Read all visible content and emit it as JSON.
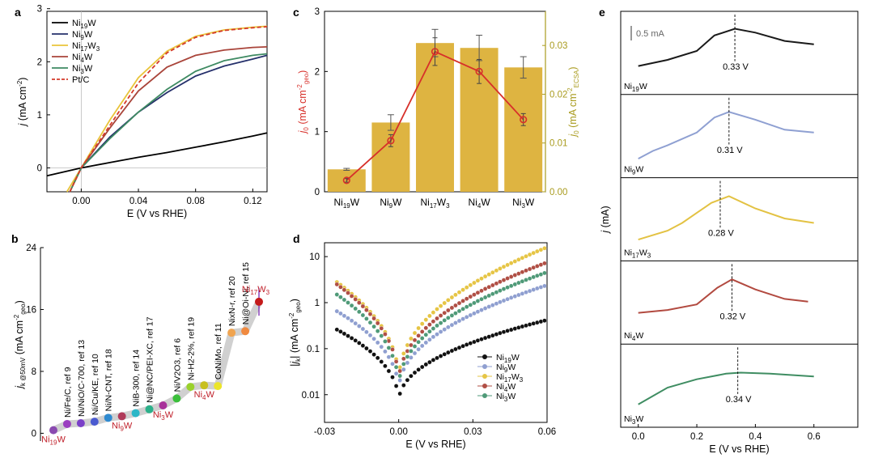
{
  "chart_data": [
    {
      "panel": "a",
      "type": "line",
      "xlabel": "E (V vs RHE)",
      "ylabel": "j (mA cm-2)",
      "xlim": [
        -0.024,
        0.13
      ],
      "ylim": [
        -0.45,
        2.95
      ],
      "xticks": [
        "0.00",
        "0.04",
        "0.08",
        "0.12"
      ],
      "xtick_values": [
        0,
        0.04,
        0.08,
        0.12
      ],
      "yticks": [
        "0",
        "1",
        "2",
        "3"
      ],
      "ytick_values": [
        0,
        1,
        2,
        3
      ],
      "grid": false,
      "legend_position": "top-left",
      "series": [
        {
          "name": "Ni19W",
          "color": "#000000",
          "dash": false,
          "x": [
            -0.024,
            0,
            0.02,
            0.04,
            0.06,
            0.08,
            0.1,
            0.12,
            0.13
          ],
          "y": [
            -0.15,
            0.0,
            0.1,
            0.2,
            0.29,
            0.39,
            0.49,
            0.6,
            0.66
          ]
        },
        {
          "name": "Ni9W",
          "color": "#25306b",
          "dash": false,
          "x": [
            -0.008,
            0,
            0.02,
            0.04,
            0.06,
            0.08,
            0.1,
            0.12,
            0.13
          ],
          "y": [
            -0.45,
            0.0,
            0.58,
            1.05,
            1.42,
            1.73,
            1.92,
            2.05,
            2.12
          ]
        },
        {
          "name": "Ni17W3",
          "color": "#e9c43a",
          "dash": false,
          "x": [
            -0.01,
            0,
            0.02,
            0.04,
            0.06,
            0.08,
            0.1,
            0.12,
            0.13
          ],
          "y": [
            -0.45,
            0.0,
            0.9,
            1.7,
            2.2,
            2.48,
            2.6,
            2.65,
            2.67
          ]
        },
        {
          "name": "Ni4W",
          "color": "#a9443a",
          "dash": false,
          "x": [
            -0.008,
            0,
            0.02,
            0.04,
            0.06,
            0.08,
            0.1,
            0.12,
            0.13
          ],
          "y": [
            -0.45,
            0.0,
            0.75,
            1.45,
            1.9,
            2.12,
            2.22,
            2.27,
            2.28
          ]
        },
        {
          "name": "Ni3W",
          "color": "#3e8a62",
          "dash": false,
          "x": [
            -0.008,
            0,
            0.02,
            0.04,
            0.06,
            0.08,
            0.1,
            0.12,
            0.13
          ],
          "y": [
            -0.45,
            0.0,
            0.55,
            1.05,
            1.48,
            1.82,
            2.02,
            2.12,
            2.15
          ]
        },
        {
          "name": "Pt/C",
          "color": "#d43a2a",
          "dash": true,
          "x": [
            -0.008,
            0,
            0.02,
            0.04,
            0.06,
            0.08,
            0.1,
            0.12,
            0.13
          ],
          "y": [
            -0.45,
            0.0,
            0.8,
            1.6,
            2.17,
            2.46,
            2.59,
            2.64,
            2.66
          ]
        }
      ]
    },
    {
      "panel": "b",
      "type": "scatter",
      "ylabel": "jk @50mV (mA cm-2 geo)",
      "ylim": [
        -1,
        24
      ],
      "yticks": [
        "0",
        "8",
        "16",
        "24"
      ],
      "ytick_values": [
        0,
        8,
        16,
        24
      ],
      "points": [
        {
          "label": "Ni19W",
          "value": 0.4,
          "color": "#8a4ab0"
        },
        {
          "label": "Ni/Fe/C, ref 9",
          "value": 1.2,
          "color": "#9b3fc0"
        },
        {
          "label": "Ni/NiO/C-700, ref 13",
          "value": 1.3,
          "color": "#7a40c8"
        },
        {
          "label": "Ni/Cu/KE, ref 10",
          "value": 1.5,
          "color": "#4a5ad0"
        },
        {
          "label": "Ni/N-CNT, ref 18",
          "value": 2.0,
          "color": "#2f8ad0"
        },
        {
          "label": "Ni9W",
          "value": 2.2,
          "color": "#b03a5a"
        },
        {
          "label": "NiB-300, ref 14",
          "value": 2.6,
          "color": "#2cb7c7"
        },
        {
          "label": "Ni@NC/PEI-XC, ref 17",
          "value": 3.1,
          "color": "#2cb08a"
        },
        {
          "label": "Ni3W",
          "value": 3.6,
          "color": "#a8329a"
        },
        {
          "label": "Ni/V2O3, ref 6",
          "value": 4.5,
          "color": "#3bbf3b"
        },
        {
          "label": "Ni-H2-2%, ref 19",
          "value": 6.0,
          "color": "#9ad12b"
        },
        {
          "label": "Ni4W",
          "value": 6.2,
          "color": "#c8c020"
        },
        {
          "label": "CoNiMo, ref 11",
          "value": 6.1,
          "color": "#ece52a"
        },
        {
          "label": "NixN-r, ref 20",
          "value": 13.0,
          "color": "#f0a450"
        },
        {
          "label": "Ni@Oi-Ni, ref 15",
          "value": 13.2,
          "color": "#f08a40"
        },
        {
          "label": "Ni17W3",
          "value": 17.0,
          "color": "#c41a1a"
        }
      ],
      "highlight_labels": [
        "Ni19W",
        "Ni9W",
        "Ni3W",
        "Ni4W",
        "Ni17W3"
      ],
      "highlight_color": "#c0202a"
    },
    {
      "panel": "c",
      "type": "bar",
      "categories": [
        "Ni19W",
        "Ni9W",
        "Ni17W3",
        "Ni4W",
        "Ni3W"
      ],
      "series": [
        {
          "axis": "right",
          "style": "bar",
          "color": "#deb441",
          "values": [
            0.0046,
            0.0142,
            0.0305,
            0.0295,
            0.0255
          ],
          "errors": [
            0.0002,
            0.0016,
            0.0028,
            0.0026,
            0.0022
          ]
        },
        {
          "axis": "left",
          "style": "line",
          "color": "#d7302a",
          "values": [
            0.19,
            0.85,
            2.33,
            2.0,
            1.2
          ],
          "errors": [
            0.03,
            0.1,
            0.23,
            0.2,
            0.1
          ]
        }
      ],
      "ylabel": "j0 (mA cm-2 geo)",
      "ylabel_right": "j0 (mA cm-2 ECSA)",
      "ylim": [
        0,
        3
      ],
      "ylim_right": [
        0,
        0.037
      ],
      "yticks": [
        "0",
        "1",
        "2",
        "3"
      ],
      "ytick_values": [
        0,
        1,
        2,
        3
      ],
      "yticks_right": [
        "0.00",
        "0.01",
        "0.02",
        "0.03"
      ],
      "ytick_values_right": [
        0,
        0.01,
        0.02,
        0.03
      ],
      "right_axis_color": "#a99b1e"
    },
    {
      "panel": "d",
      "type": "scatter",
      "log_y": true,
      "xlabel": "E (V vs RHE)",
      "ylabel": "|jk| (mA cm-2 geo)",
      "xlim": [
        -0.03,
        0.06
      ],
      "ylim": [
        0.0025,
        20
      ],
      "xticks": [
        "-0.03",
        "0.00",
        "0.03",
        "0.06"
      ],
      "xtick_values": [
        -0.03,
        0,
        0.03,
        0.06
      ],
      "yticks": [
        "0.01",
        "0.1",
        "1",
        "10"
      ],
      "ytick_values": [
        0.01,
        0.1,
        1,
        10
      ],
      "legend_position": "bottom-right",
      "series": [
        {
          "name": "Ni19W",
          "color": "#111111",
          "left": 0.26,
          "right": 0.42,
          "min": 0.0065
        },
        {
          "name": "Ni9W",
          "color": "#8f9fd0",
          "left": 0.65,
          "right": 2.4,
          "min": 0.011
        },
        {
          "name": "Ni17W3",
          "color": "#e6c545",
          "left": 2.8,
          "right": 16.0,
          "min": 0.018
        },
        {
          "name": "Ni4W",
          "color": "#b04f45",
          "left": 2.5,
          "right": 7.5,
          "min": 0.016
        },
        {
          "name": "Ni3W",
          "color": "#4f9a78",
          "left": 1.5,
          "right": 4.6,
          "min": 0.013
        }
      ]
    },
    {
      "panel": "e",
      "type": "line",
      "xlabel": "E (V vs RHE)",
      "ylabel": "j (mA)",
      "xlim": [
        -0.06,
        0.75
      ],
      "xticks": [
        "0.0",
        "0.2",
        "0.4",
        "0.6"
      ],
      "xtick_values": [
        0,
        0.2,
        0.4,
        0.6
      ],
      "scale_label": "0.5 mA",
      "series": [
        {
          "name": "Ni19W",
          "color": "#1a1a1a",
          "peak_label": "0.33 V",
          "peak_x": 0.33,
          "x": [
            0,
            0.1,
            0.2,
            0.26,
            0.33,
            0.4,
            0.5,
            0.6
          ],
          "y": [
            0.25,
            0.36,
            0.52,
            0.8,
            0.92,
            0.85,
            0.7,
            0.64
          ]
        },
        {
          "name": "Ni9W",
          "color": "#8fa0d2",
          "peak_label": "0.31 V",
          "peak_x": 0.31,
          "x": [
            0,
            0.05,
            0.1,
            0.2,
            0.26,
            0.31,
            0.4,
            0.5,
            0.6
          ],
          "y": [
            0.08,
            0.22,
            0.32,
            0.55,
            0.82,
            0.92,
            0.78,
            0.6,
            0.55
          ]
        },
        {
          "name": "Ni17W3",
          "color": "#e3c243",
          "peak_label": "0.28 V",
          "peak_x": 0.28,
          "x": [
            0,
            0.1,
            0.15,
            0.2,
            0.25,
            0.31,
            0.4,
            0.5,
            0.6
          ],
          "y": [
            0.12,
            0.28,
            0.42,
            0.6,
            0.78,
            0.9,
            0.68,
            0.5,
            0.42
          ]
        },
        {
          "name": "Ni4W",
          "color": "#b24a40",
          "peak_label": "0.32 V",
          "peak_x": 0.32,
          "x": [
            0,
            0.1,
            0.2,
            0.27,
            0.32,
            0.4,
            0.5,
            0.58
          ],
          "y": [
            0.3,
            0.35,
            0.45,
            0.75,
            0.9,
            0.72,
            0.55,
            0.5
          ]
        },
        {
          "name": "Ni3W",
          "color": "#3f8d62",
          "peak_label": "0.34 V",
          "peak_x": 0.34,
          "x": [
            0,
            0.05,
            0.1,
            0.2,
            0.3,
            0.35,
            0.45,
            0.6
          ],
          "y": [
            0.15,
            0.3,
            0.45,
            0.6,
            0.7,
            0.72,
            0.7,
            0.65
          ]
        }
      ]
    }
  ]
}
